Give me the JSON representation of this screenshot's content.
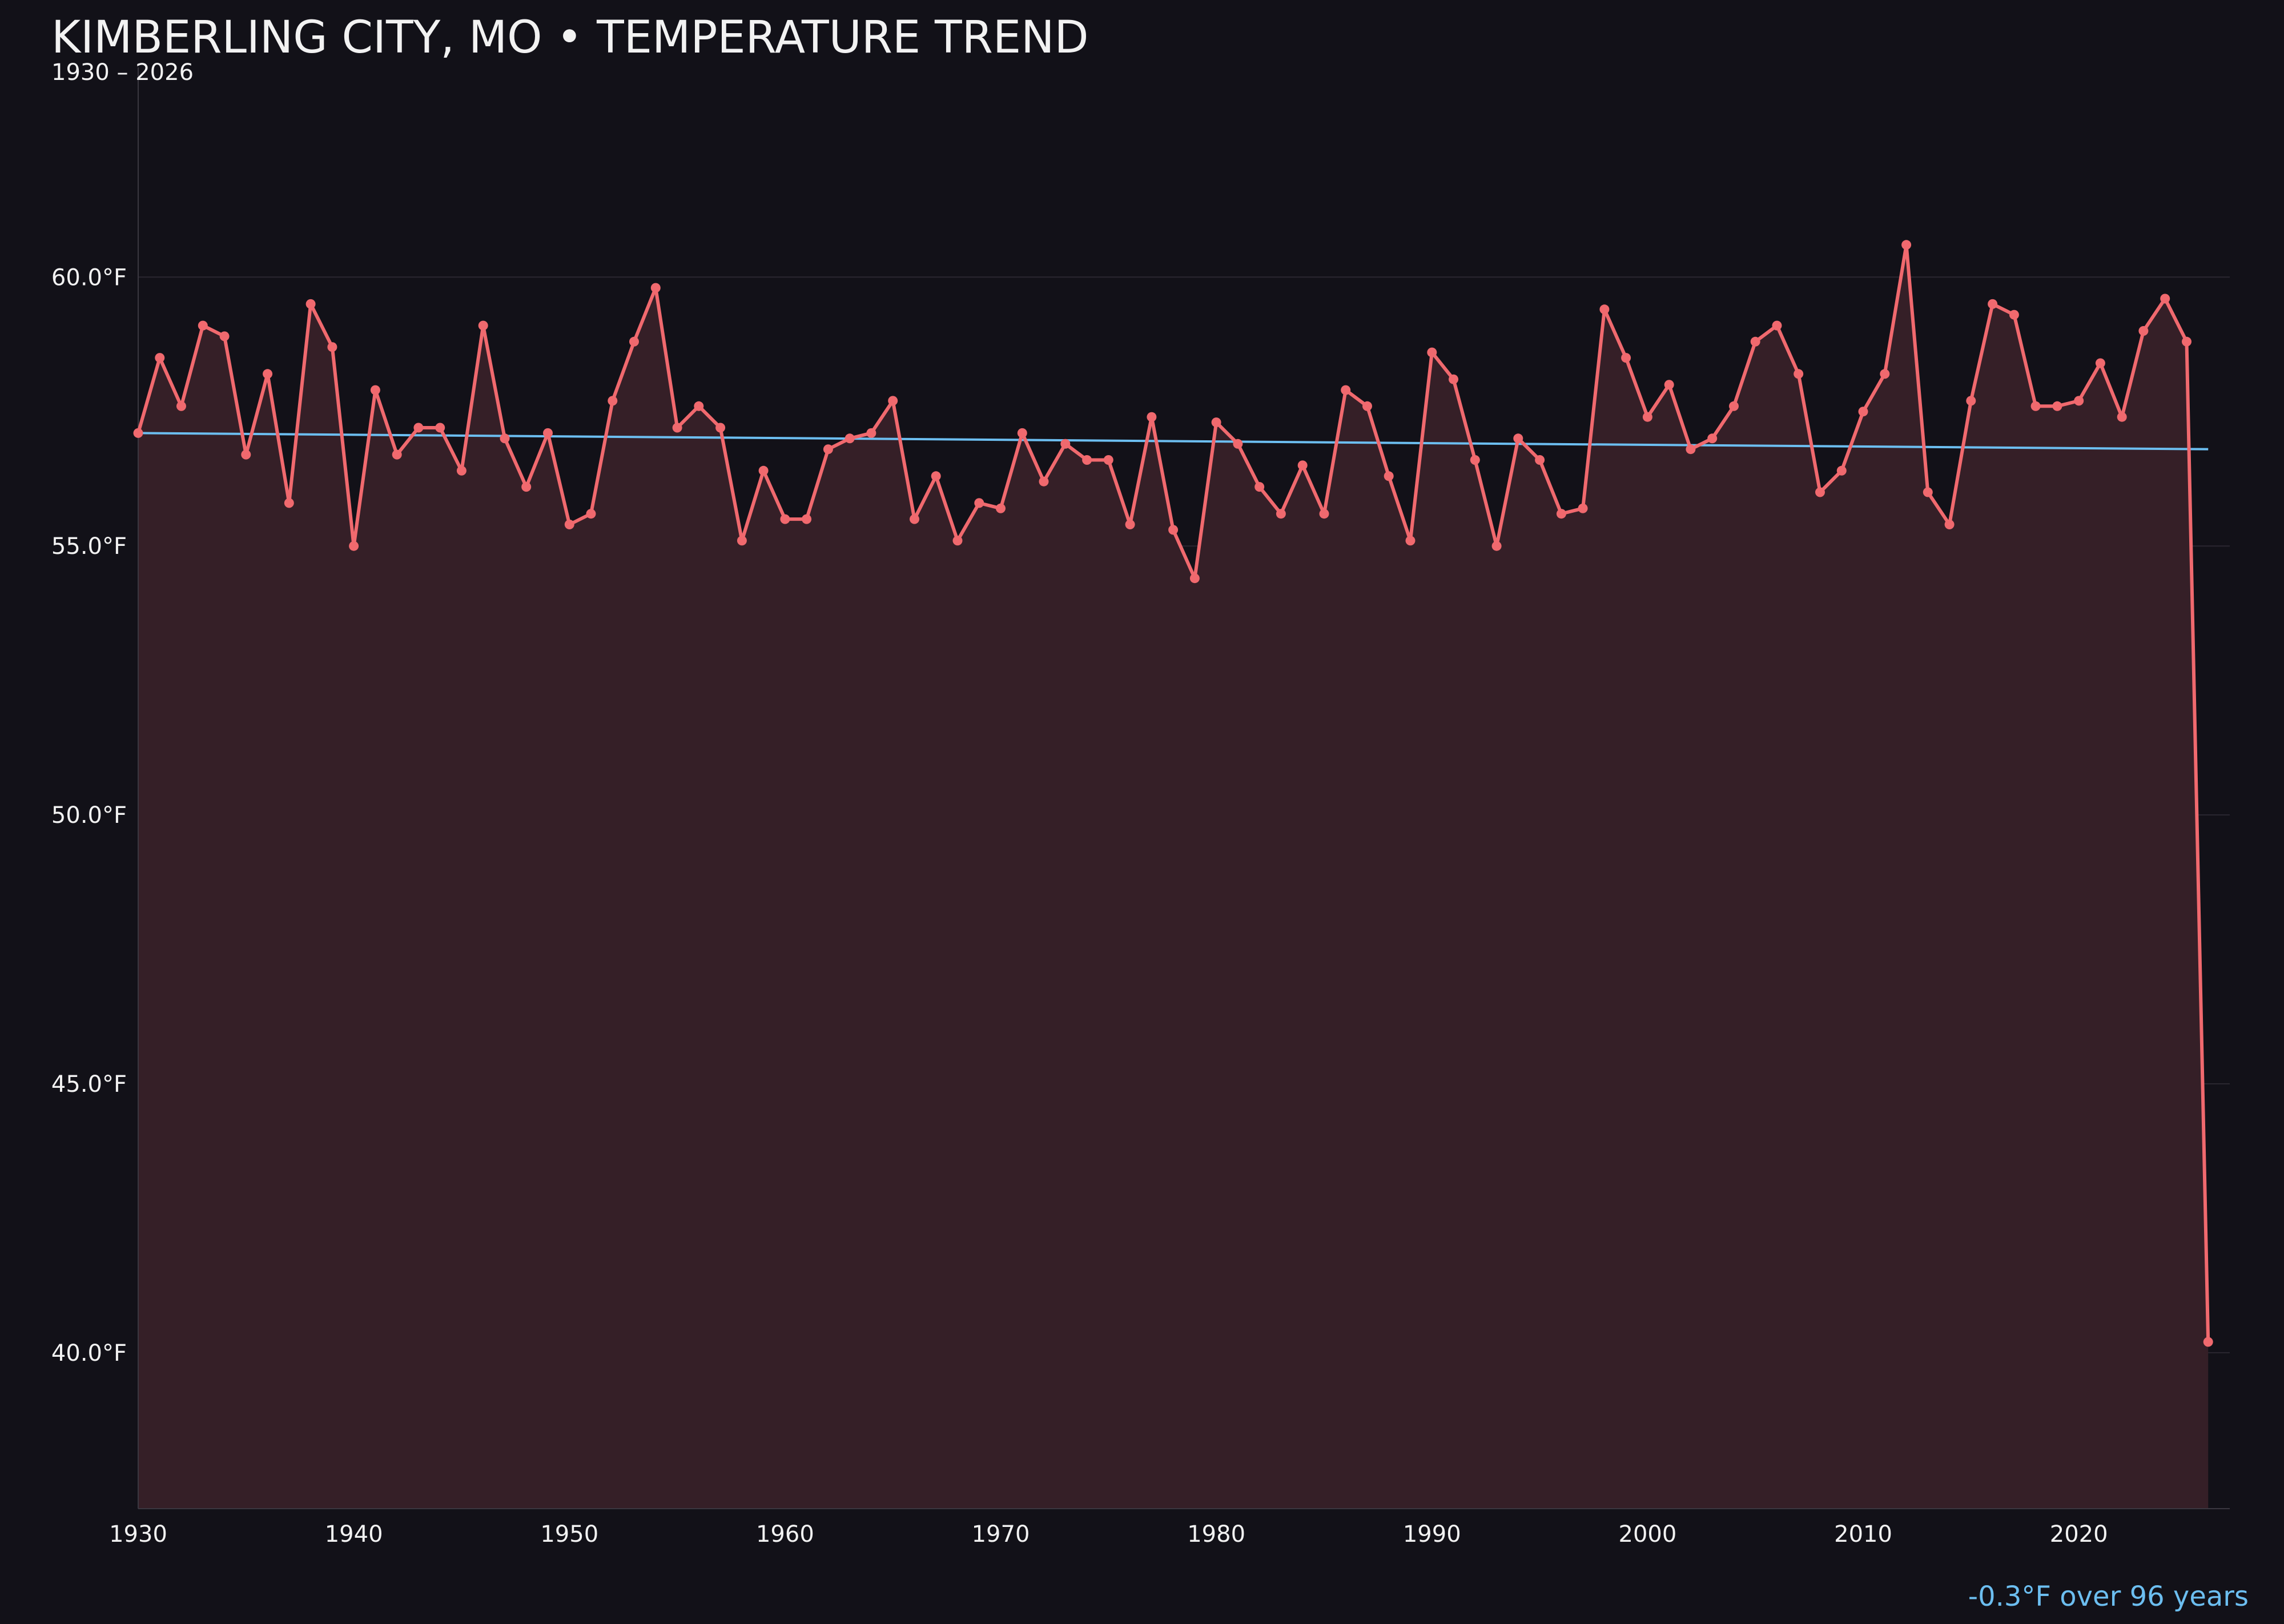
{
  "chart_data": {
    "type": "line",
    "title": "KIMBERLING CITY, MO • TEMPERATURE TREND",
    "subtitle": "1930 – 2026",
    "annotation": "-0.3°F over 96 years",
    "x_tick_labels": [
      "1930",
      "1940",
      "1950",
      "1960",
      "1970",
      "1980",
      "1990",
      "2000",
      "2010",
      "2020"
    ],
    "y_tick_labels": [
      "60.0°F",
      "55.0°F",
      "50.0°F",
      "45.0°F",
      "40.0°F"
    ],
    "x_ticks": [
      1930,
      1940,
      1950,
      1960,
      1970,
      1980,
      1990,
      2000,
      2010,
      2020
    ],
    "y_ticks": [
      60,
      55,
      50,
      45,
      40
    ],
    "xlim": [
      1930,
      2027
    ],
    "ylim": [
      37.1,
      63.9
    ],
    "grid": true,
    "fill_area": true,
    "colors": {
      "background": "#121118",
      "series": "#f0696e",
      "fill": "#351f27",
      "trend": "#6cbef0",
      "text": "#f2f2f2",
      "grid": "#2a2730",
      "axis": "#3a3740"
    },
    "series": [
      {
        "x": [
          1930,
          1931,
          1932,
          1933,
          1934,
          1935,
          1936,
          1937,
          1938,
          1939,
          1940,
          1941,
          1942,
          1943,
          1944,
          1945,
          1946,
          1947,
          1948,
          1949,
          1950,
          1951,
          1952,
          1953,
          1954,
          1955,
          1956,
          1957,
          1958,
          1959,
          1960,
          1961,
          1962,
          1963,
          1964,
          1965,
          1966,
          1967,
          1968,
          1969,
          1970,
          1971,
          1972,
          1973,
          1974,
          1975,
          1976,
          1977,
          1978,
          1979,
          1980,
          1981,
          1982,
          1983,
          1984,
          1985,
          1986,
          1987,
          1988,
          1989,
          1990,
          1991,
          1992,
          1993,
          1994,
          1995,
          1996,
          1997,
          1998,
          1999,
          2000,
          2001,
          2002,
          2003,
          2004,
          2005,
          2006,
          2007,
          2008,
          2009,
          2010,
          2011,
          2012,
          2013,
          2014,
          2015,
          2016,
          2017,
          2018,
          2019,
          2020,
          2021,
          2022,
          2023,
          2024,
          2025,
          2026
        ],
        "values": [
          57.1,
          58.5,
          57.6,
          59.1,
          58.9,
          56.7,
          58.2,
          55.8,
          59.5,
          58.7,
          55.0,
          57.9,
          56.7,
          57.2,
          57.2,
          56.4,
          59.1,
          57.0,
          56.1,
          57.1,
          55.4,
          55.6,
          57.7,
          58.8,
          59.8,
          57.2,
          57.6,
          57.2,
          55.1,
          56.4,
          55.5,
          55.5,
          56.8,
          57.0,
          57.1,
          57.7,
          55.5,
          56.3,
          55.1,
          55.8,
          55.7,
          57.1,
          56.2,
          56.9,
          56.6,
          56.6,
          55.4,
          57.4,
          55.3,
          54.4,
          57.3,
          56.9,
          56.1,
          55.6,
          56.5,
          55.6,
          57.9,
          57.6,
          56.3,
          55.1,
          58.6,
          58.1,
          56.6,
          55.0,
          57.0,
          56.6,
          55.6,
          55.7,
          59.4,
          58.5,
          57.4,
          58.0,
          56.8,
          57.0,
          57.6,
          58.8,
          59.1,
          58.2,
          56.0,
          56.4,
          57.5,
          58.2,
          60.6,
          56.0,
          55.4,
          57.7,
          59.5,
          59.3,
          57.6,
          57.6,
          57.7,
          58.4,
          57.4,
          59.0,
          59.6,
          58.8,
          40.2
        ]
      }
    ],
    "trend": {
      "x": [
        1930,
        2026
      ],
      "values": [
        57.1,
        56.8
      ]
    }
  }
}
